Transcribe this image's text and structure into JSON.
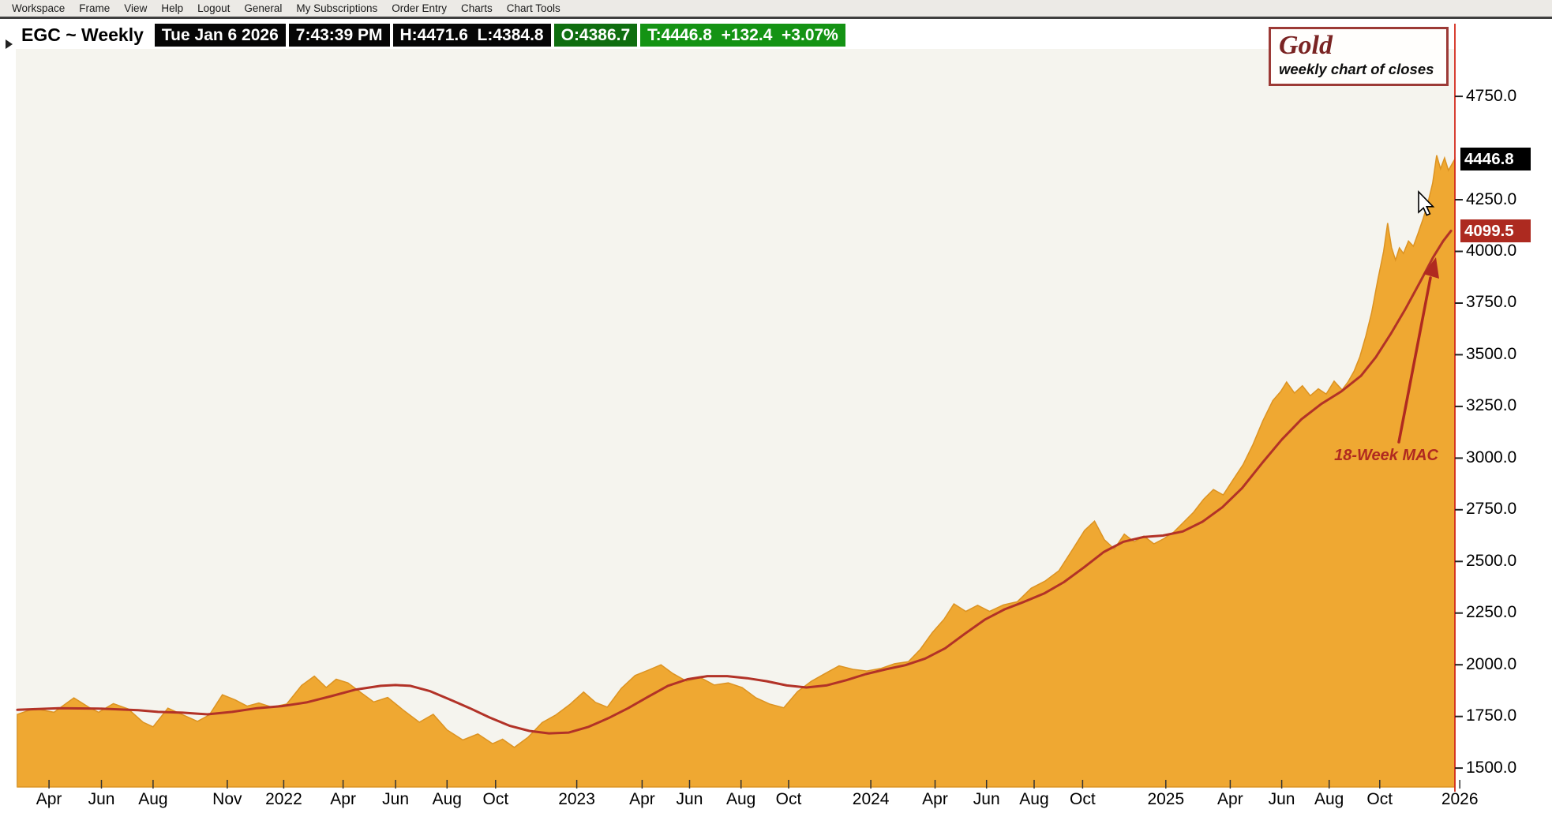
{
  "menubar": {
    "items": [
      "Workspace",
      "Frame",
      "View",
      "Help",
      "Logout",
      "General",
      "My Subscriptions",
      "Order Entry",
      "Charts",
      "Chart Tools"
    ]
  },
  "chart_header": {
    "symbol": "EGC ~ Weekly",
    "segments": [
      {
        "text": "Tue Jan 6 2026",
        "bg": "#060606",
        "fg": "#ffffff"
      },
      {
        "text": "7:43:39 PM",
        "bg": "#060606",
        "fg": "#ffffff"
      },
      {
        "text": "H:4471.6  L:4384.8",
        "bg": "#060606",
        "fg": "#ffffff"
      },
      {
        "text": "O:4386.7",
        "bg": "#0f6e10",
        "fg": "#ffffff"
      },
      {
        "text": "T:4446.8  +132.4  +3.07%",
        "bg": "#149314",
        "fg": "#ffffff"
      }
    ]
  },
  "title_box": {
    "title": "Gold",
    "subtitle": "weekly chart of closes"
  },
  "annotation": {
    "ma_label": "18-Week MAC",
    "color": "#b02a20"
  },
  "price_tags": [
    {
      "value": 4446.8,
      "bg": "#000000",
      "name": "last-price-tag"
    },
    {
      "value": 4099.5,
      "bg": "#ad2a20",
      "name": "ma-price-tag"
    }
  ],
  "chart_data": {
    "type": "area",
    "title": "Gold",
    "subtitle": "weekly chart of closes",
    "symbol": "EGC",
    "timeframe": "Weekly",
    "plot_bg": "#f5f4ee",
    "axis_line_color": "#d42b1c",
    "grid": false,
    "ylim": [
      1450,
      4850
    ],
    "y_tick_values": [
      4750,
      4250,
      4000,
      3750,
      3500,
      3250,
      3000,
      2750,
      2500,
      2250,
      2000,
      1750,
      1500
    ],
    "x_tick_labels": [
      {
        "text": "Apr",
        "f": 0.022
      },
      {
        "text": "Jun",
        "f": 0.0585
      },
      {
        "text": "Aug",
        "f": 0.0944
      },
      {
        "text": "Nov",
        "f": 0.146
      },
      {
        "text": "2022",
        "f": 0.1853
      },
      {
        "text": "Apr",
        "f": 0.2266
      },
      {
        "text": "Jun",
        "f": 0.2631
      },
      {
        "text": "Aug",
        "f": 0.2989
      },
      {
        "text": "Oct",
        "f": 0.3327
      },
      {
        "text": "2023",
        "f": 0.3891
      },
      {
        "text": "Apr",
        "f": 0.4346
      },
      {
        "text": "Jun",
        "f": 0.4676
      },
      {
        "text": "Aug",
        "f": 0.5034
      },
      {
        "text": "Oct",
        "f": 0.5365
      },
      {
        "text": "2024",
        "f": 0.5937
      },
      {
        "text": "Apr",
        "f": 0.6384
      },
      {
        "text": "Jun",
        "f": 0.6742
      },
      {
        "text": "Aug",
        "f": 0.7073
      },
      {
        "text": "Oct",
        "f": 0.741
      },
      {
        "text": "2025",
        "f": 0.7989
      },
      {
        "text": "Apr",
        "f": 0.8437
      },
      {
        "text": "Jun",
        "f": 0.8795
      },
      {
        "text": "Aug",
        "f": 0.9125
      },
      {
        "text": "Oct",
        "f": 0.9477
      },
      {
        "text": "2026",
        "f": 1.0034
      }
    ],
    "last_bar": {
      "date": "Tue Jan 6 2026",
      "time": "7:43:39 PM",
      "high": 4471.6,
      "low": 4384.8,
      "open": 4386.7,
      "close": 4446.8,
      "change": "+132.4",
      "change_pct": "+3.07%"
    },
    "series": [
      {
        "name": "Gold weekly close",
        "type": "area",
        "color": "#efa832",
        "edge": "#dc9322",
        "points": [
          [
            0.0,
            1760
          ],
          [
            0.0117,
            1788
          ],
          [
            0.0255,
            1770
          ],
          [
            0.0393,
            1840
          ],
          [
            0.0496,
            1795
          ],
          [
            0.0565,
            1770
          ],
          [
            0.0668,
            1812
          ],
          [
            0.0771,
            1786
          ],
          [
            0.0875,
            1722
          ],
          [
            0.0944,
            1700
          ],
          [
            0.1047,
            1790
          ],
          [
            0.115,
            1758
          ],
          [
            0.1253,
            1726
          ],
          [
            0.1336,
            1758
          ],
          [
            0.1426,
            1855
          ],
          [
            0.1515,
            1830
          ],
          [
            0.1598,
            1800
          ],
          [
            0.168,
            1815
          ],
          [
            0.177,
            1795
          ],
          [
            0.1873,
            1810
          ],
          [
            0.1977,
            1900
          ],
          [
            0.2066,
            1945
          ],
          [
            0.2149,
            1890
          ],
          [
            0.2218,
            1930
          ],
          [
            0.23,
            1912
          ],
          [
            0.239,
            1865
          ],
          [
            0.2479,
            1820
          ],
          [
            0.2576,
            1842
          ],
          [
            0.2686,
            1780
          ],
          [
            0.2796,
            1722
          ],
          [
            0.2893,
            1760
          ],
          [
            0.2989,
            1685
          ],
          [
            0.3099,
            1636
          ],
          [
            0.3203,
            1665
          ],
          [
            0.3306,
            1618
          ],
          [
            0.3375,
            1640
          ],
          [
            0.3457,
            1600
          ],
          [
            0.3554,
            1650
          ],
          [
            0.365,
            1720
          ],
          [
            0.3747,
            1758
          ],
          [
            0.3843,
            1808
          ],
          [
            0.3939,
            1868
          ],
          [
            0.4022,
            1818
          ],
          [
            0.4104,
            1795
          ],
          [
            0.4201,
            1886
          ],
          [
            0.4297,
            1948
          ],
          [
            0.4394,
            1975
          ],
          [
            0.4477,
            2000
          ],
          [
            0.4559,
            1958
          ],
          [
            0.4656,
            1920
          ],
          [
            0.4752,
            1938
          ],
          [
            0.4848,
            1902
          ],
          [
            0.4945,
            1912
          ],
          [
            0.5041,
            1890
          ],
          [
            0.5138,
            1840
          ],
          [
            0.5234,
            1810
          ],
          [
            0.5331,
            1792
          ],
          [
            0.5427,
            1870
          ],
          [
            0.5523,
            1920
          ],
          [
            0.562,
            1958
          ],
          [
            0.5716,
            1995
          ],
          [
            0.5813,
            1978
          ],
          [
            0.5909,
            1970
          ],
          [
            0.6006,
            1982
          ],
          [
            0.6102,
            2005
          ],
          [
            0.6198,
            2015
          ],
          [
            0.6281,
            2075
          ],
          [
            0.6364,
            2155
          ],
          [
            0.6446,
            2220
          ],
          [
            0.6515,
            2295
          ],
          [
            0.6598,
            2258
          ],
          [
            0.668,
            2288
          ],
          [
            0.6763,
            2258
          ],
          [
            0.686,
            2290
          ],
          [
            0.6956,
            2305
          ],
          [
            0.7052,
            2370
          ],
          [
            0.7149,
            2405
          ],
          [
            0.7245,
            2455
          ],
          [
            0.7342,
            2560
          ],
          [
            0.7424,
            2650
          ],
          [
            0.7493,
            2695
          ],
          [
            0.7562,
            2605
          ],
          [
            0.7631,
            2560
          ],
          [
            0.77,
            2632
          ],
          [
            0.7769,
            2595
          ],
          [
            0.7837,
            2622
          ],
          [
            0.7906,
            2585
          ],
          [
            0.7975,
            2610
          ],
          [
            0.8044,
            2642
          ],
          [
            0.8113,
            2690
          ],
          [
            0.8182,
            2738
          ],
          [
            0.8251,
            2800
          ],
          [
            0.832,
            2848
          ],
          [
            0.8388,
            2822
          ],
          [
            0.8457,
            2895
          ],
          [
            0.8526,
            2968
          ],
          [
            0.8595,
            3065
          ],
          [
            0.8664,
            3180
          ],
          [
            0.8733,
            3278
          ],
          [
            0.8788,
            3322
          ],
          [
            0.8829,
            3368
          ],
          [
            0.8884,
            3315
          ],
          [
            0.8939,
            3350
          ],
          [
            0.8994,
            3302
          ],
          [
            0.905,
            3335
          ],
          [
            0.9105,
            3310
          ],
          [
            0.916,
            3372
          ],
          [
            0.9215,
            3330
          ],
          [
            0.9256,
            3368
          ],
          [
            0.9298,
            3420
          ],
          [
            0.9339,
            3490
          ],
          [
            0.938,
            3590
          ],
          [
            0.9421,
            3705
          ],
          [
            0.9463,
            3860
          ],
          [
            0.9504,
            4000
          ],
          [
            0.9532,
            4137
          ],
          [
            0.9559,
            4020
          ],
          [
            0.9587,
            3958
          ],
          [
            0.9614,
            4017
          ],
          [
            0.9642,
            3990
          ],
          [
            0.9677,
            4050
          ],
          [
            0.9711,
            4025
          ],
          [
            0.9745,
            4090
          ],
          [
            0.978,
            4160
          ],
          [
            0.9814,
            4240
          ],
          [
            0.9845,
            4330
          ],
          [
            0.9873,
            4465
          ],
          [
            0.99,
            4400
          ],
          [
            0.9928,
            4452
          ],
          [
            0.9955,
            4392
          ],
          [
            1.0,
            4446.8
          ]
        ]
      },
      {
        "name": "18-Week MAC",
        "type": "line",
        "color": "#b23227",
        "last_value": 4099.5,
        "points": [
          [
            0.0,
            1782
          ],
          [
            0.0289,
            1790
          ],
          [
            0.0565,
            1788
          ],
          [
            0.084,
            1780
          ],
          [
            0.0978,
            1772
          ],
          [
            0.115,
            1768
          ],
          [
            0.1322,
            1760
          ],
          [
            0.1494,
            1772
          ],
          [
            0.1667,
            1790
          ],
          [
            0.1839,
            1800
          ],
          [
            0.2011,
            1818
          ],
          [
            0.2183,
            1848
          ],
          [
            0.2355,
            1880
          ],
          [
            0.2527,
            1898
          ],
          [
            0.2631,
            1902
          ],
          [
            0.2734,
            1898
          ],
          [
            0.2872,
            1872
          ],
          [
            0.3009,
            1832
          ],
          [
            0.3147,
            1790
          ],
          [
            0.3285,
            1745
          ],
          [
            0.3423,
            1705
          ],
          [
            0.3561,
            1680
          ],
          [
            0.3698,
            1668
          ],
          [
            0.3836,
            1672
          ],
          [
            0.3974,
            1700
          ],
          [
            0.4112,
            1742
          ],
          [
            0.4249,
            1790
          ],
          [
            0.4387,
            1845
          ],
          [
            0.4525,
            1898
          ],
          [
            0.4663,
            1930
          ],
          [
            0.48,
            1945
          ],
          [
            0.4938,
            1945
          ],
          [
            0.5076,
            1935
          ],
          [
            0.5214,
            1920
          ],
          [
            0.5352,
            1900
          ],
          [
            0.5489,
            1890
          ],
          [
            0.5627,
            1900
          ],
          [
            0.5765,
            1925
          ],
          [
            0.5903,
            1955
          ],
          [
            0.604,
            1978
          ],
          [
            0.6178,
            1998
          ],
          [
            0.6316,
            2030
          ],
          [
            0.6454,
            2080
          ],
          [
            0.6591,
            2150
          ],
          [
            0.6729,
            2218
          ],
          [
            0.6867,
            2268
          ],
          [
            0.7005,
            2305
          ],
          [
            0.7142,
            2345
          ],
          [
            0.728,
            2400
          ],
          [
            0.7418,
            2470
          ],
          [
            0.7556,
            2545
          ],
          [
            0.7693,
            2595
          ],
          [
            0.7831,
            2618
          ],
          [
            0.7969,
            2625
          ],
          [
            0.8107,
            2645
          ],
          [
            0.8244,
            2692
          ],
          [
            0.8382,
            2762
          ],
          [
            0.852,
            2855
          ],
          [
            0.8658,
            2975
          ],
          [
            0.8796,
            3090
          ],
          [
            0.8933,
            3188
          ],
          [
            0.9071,
            3262
          ],
          [
            0.9209,
            3322
          ],
          [
            0.9347,
            3398
          ],
          [
            0.945,
            3488
          ],
          [
            0.9553,
            3600
          ],
          [
            0.9656,
            3722
          ],
          [
            0.976,
            3855
          ],
          [
            0.9849,
            3972
          ],
          [
            0.9918,
            4050
          ],
          [
            0.9973,
            4099.5
          ]
        ]
      }
    ]
  }
}
